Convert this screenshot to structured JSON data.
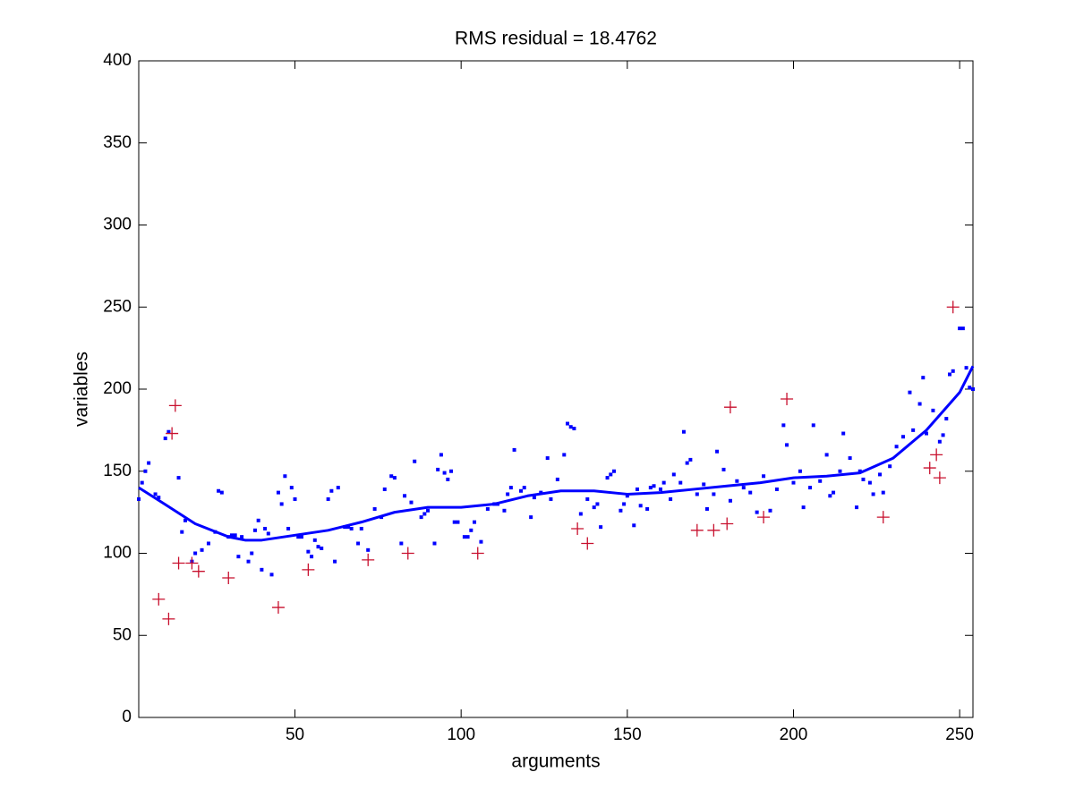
{
  "chart_data": {
    "type": "scatter",
    "title": "RMS residual = 18.4762",
    "xlabel": "arguments",
    "ylabel": "variables",
    "xlim": [
      3,
      254
    ],
    "ylim": [
      0,
      400
    ],
    "xticks": [
      50,
      100,
      150,
      200,
      250
    ],
    "yticks": [
      0,
      50,
      100,
      150,
      200,
      250,
      300,
      350,
      400
    ],
    "grid": false,
    "box": true,
    "series": [
      {
        "style": "dot",
        "color": "#0000ff",
        "x": [
          3,
          4,
          5,
          6,
          8,
          9,
          11,
          12,
          15,
          16,
          17,
          19,
          20,
          22,
          24,
          26,
          27,
          28,
          30,
          31,
          32,
          33,
          34,
          36,
          37,
          38,
          39,
          40,
          41,
          42,
          43,
          45,
          46,
          47,
          48,
          49,
          50,
          51,
          52,
          54,
          55,
          56,
          57,
          58,
          60,
          61,
          62,
          63,
          65,
          66,
          67,
          69,
          70,
          72,
          74,
          76,
          77,
          79,
          80,
          82,
          83,
          85,
          86,
          88,
          89,
          90,
          92,
          93,
          94,
          95,
          96,
          97,
          98,
          99,
          101,
          102,
          103,
          104,
          106,
          108,
          110,
          111,
          113,
          114,
          115,
          116,
          118,
          119,
          121,
          122,
          124,
          126,
          127,
          129,
          131,
          132,
          133,
          134,
          136,
          138,
          140,
          141,
          142,
          144,
          145,
          146,
          148,
          149,
          150,
          152,
          153,
          154,
          156,
          157,
          158,
          160,
          161,
          163,
          164,
          166,
          167,
          168,
          169,
          171,
          173,
          174,
          176,
          177,
          179,
          181,
          183,
          185,
          187,
          189,
          191,
          193,
          195,
          197,
          198,
          200,
          202,
          203,
          205,
          206,
          208,
          210,
          211,
          212,
          214,
          215,
          217,
          219,
          220,
          221,
          223,
          224,
          226,
          227,
          229,
          231,
          233,
          235,
          236,
          238,
          239,
          240,
          242,
          244,
          245,
          246,
          247,
          248,
          250,
          251,
          252,
          253,
          254
        ],
        "values": [
          133,
          143,
          150,
          155,
          136,
          134,
          170,
          174,
          146,
          113,
          120,
          95,
          100,
          102,
          106,
          113,
          138,
          137,
          110,
          111,
          111,
          98,
          110,
          95,
          100,
          114,
          120,
          90,
          115,
          112,
          87,
          137,
          130,
          147,
          115,
          140,
          133,
          110,
          110,
          101,
          98,
          108,
          104,
          103,
          133,
          138,
          95,
          140,
          116,
          116,
          115,
          106,
          115,
          102,
          127,
          122,
          139,
          147,
          146,
          106,
          135,
          131,
          156,
          122,
          124,
          126,
          106,
          151,
          160,
          149,
          145,
          150,
          119,
          119,
          110,
          110,
          114,
          119,
          107,
          127,
          130,
          130,
          126,
          136,
          140,
          163,
          138,
          140,
          122,
          134,
          137,
          158,
          133,
          145,
          160,
          179,
          177,
          176,
          124,
          133,
          128,
          130,
          116,
          146,
          148,
          150,
          126,
          130,
          135,
          117,
          139,
          129,
          127,
          140,
          141,
          139,
          143,
          133,
          148,
          143,
          174,
          155,
          157,
          136,
          142,
          127,
          136,
          162,
          151,
          132,
          144,
          140,
          137,
          125,
          147,
          126,
          139,
          178,
          166,
          143,
          150,
          128,
          140,
          178,
          144,
          160,
          135,
          137,
          150,
          173,
          158,
          128,
          150,
          145,
          143,
          136,
          148,
          137,
          153,
          165,
          171,
          198,
          175,
          191,
          207,
          173,
          187,
          168,
          172,
          182,
          209,
          211,
          237,
          237,
          213,
          201,
          200
        ]
      },
      {
        "style": "plus",
        "color": "#c8102e",
        "x": [
          9,
          12,
          13,
          14,
          15,
          19,
          21,
          30,
          45,
          54,
          72,
          84,
          105,
          135,
          138,
          171,
          176,
          180,
          181,
          191,
          198,
          227,
          241,
          243,
          244,
          248
        ],
        "values": [
          72,
          60,
          173,
          190,
          94,
          94,
          89,
          85,
          67,
          90,
          96,
          100,
          100,
          115,
          106,
          114,
          114,
          118,
          189,
          122,
          194,
          122,
          152,
          160,
          146,
          250
        ]
      },
      {
        "style": "line",
        "color": "#0000ff",
        "x": [
          3,
          10,
          20,
          30,
          35,
          40,
          50,
          60,
          70,
          80,
          90,
          100,
          110,
          120,
          130,
          140,
          150,
          160,
          170,
          180,
          190,
          200,
          210,
          220,
          230,
          240,
          250,
          254
        ],
        "values": [
          140,
          131,
          118,
          110,
          108,
          108,
          111,
          114,
          119,
          125,
          128,
          128,
          130,
          135,
          138,
          138,
          136,
          137,
          139,
          141,
          143,
          146,
          147,
          149,
          158,
          175,
          198,
          214
        ]
      }
    ]
  }
}
